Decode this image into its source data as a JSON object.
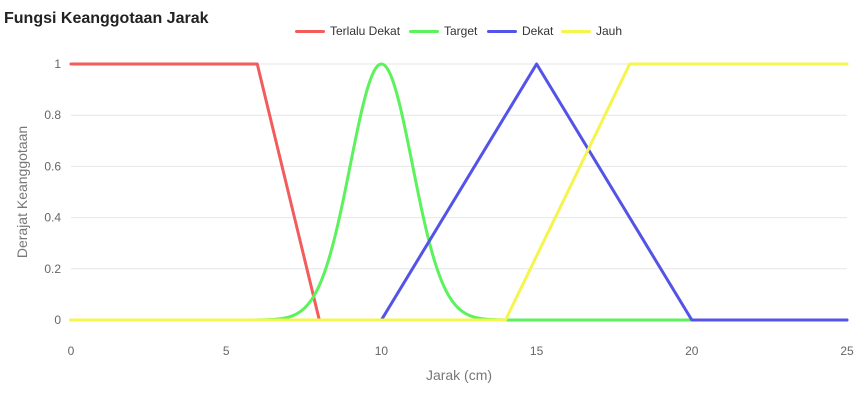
{
  "chart_data": {
    "type": "line",
    "title": "Fungsi Keanggotaan Jarak",
    "xlabel": "Jarak (cm)",
    "ylabel": "Derajat Keanggotaan",
    "xlim": [
      0,
      25
    ],
    "ylim": [
      0,
      1
    ],
    "x_ticks": [
      "0",
      "5",
      "10",
      "15",
      "20",
      "25"
    ],
    "y_ticks": [
      "0",
      "0.2",
      "0.4",
      "0.6",
      "0.8",
      "1"
    ],
    "grid": "horizontal",
    "legend_position": "top",
    "series": [
      {
        "name": "Terlalu Dekat",
        "color": "#f25c5c",
        "shape": "trapezoid",
        "x": [
          0,
          6,
          8,
          25
        ],
        "y": [
          1,
          1,
          0,
          0
        ]
      },
      {
        "name": "Target",
        "color": "#5cf25c",
        "shape": "gaussian",
        "mean": 10,
        "sigma": 1,
        "x": [
          0,
          6,
          7,
          7.5,
          8,
          8.5,
          9,
          9.5,
          10,
          10.5,
          11,
          11.5,
          12,
          12.5,
          13,
          14,
          25
        ],
        "y": [
          0,
          0.0003,
          0.011,
          0.044,
          0.135,
          0.325,
          0.607,
          0.882,
          1,
          0.882,
          0.607,
          0.325,
          0.135,
          0.044,
          0.011,
          0.0003,
          0
        ]
      },
      {
        "name": "Dekat",
        "color": "#5353e8",
        "shape": "triangle",
        "x": [
          0,
          10,
          15,
          20,
          25
        ],
        "y": [
          0,
          0,
          1,
          0,
          0
        ]
      },
      {
        "name": "Jauh",
        "color": "#f5f54e",
        "shape": "trapezoid",
        "x": [
          0,
          14,
          18,
          25
        ],
        "y": [
          0,
          0,
          1,
          1
        ]
      }
    ]
  }
}
